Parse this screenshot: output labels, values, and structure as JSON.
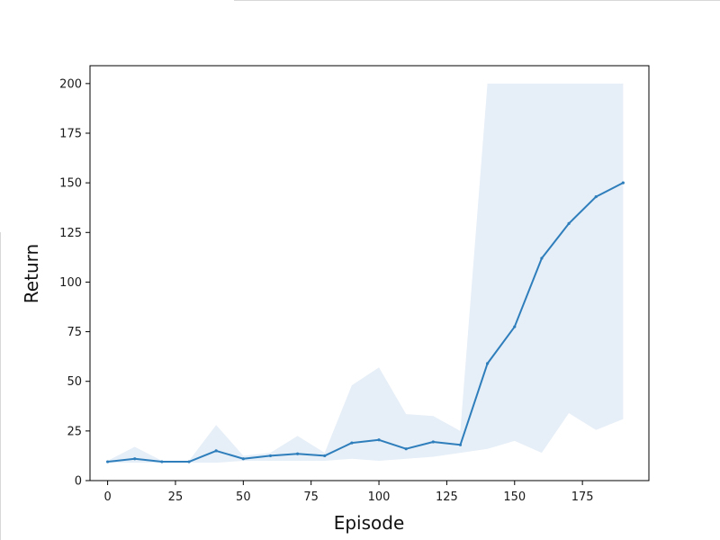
{
  "chart_data": {
    "type": "line",
    "title": "",
    "xlabel": "Episode",
    "ylabel": "Return",
    "xlim": [
      -6.5,
      199.5
    ],
    "ylim": [
      0,
      209
    ],
    "xticks": [
      0,
      25,
      50,
      75,
      100,
      125,
      150,
      175
    ],
    "yticks": [
      0,
      25,
      50,
      75,
      100,
      125,
      150,
      175,
      200
    ],
    "grid": false,
    "legend": "none",
    "series": [
      {
        "color": "#2e7ebc",
        "band_color": "#e6eef7",
        "x": [
          0,
          10,
          20,
          30,
          40,
          50,
          60,
          70,
          80,
          90,
          100,
          110,
          120,
          130,
          140,
          150,
          160,
          170,
          180,
          190
        ],
        "y": [
          9.5,
          11,
          9.5,
          9.5,
          15,
          11,
          12.5,
          13.5,
          12.5,
          19,
          20.5,
          16,
          19.5,
          18,
          59,
          77.5,
          112,
          129.5,
          143,
          150
        ],
        "lower": [
          9,
          9,
          9,
          9,
          9,
          10,
          10,
          10,
          10,
          11,
          10,
          11,
          12,
          14,
          16,
          20,
          14,
          34,
          25.5,
          31
        ],
        "upper": [
          10,
          17,
          10,
          10,
          28,
          12.5,
          14,
          22.5,
          14,
          48,
          57,
          33.5,
          32.5,
          25,
          200,
          200,
          200,
          200,
          200,
          200
        ]
      }
    ]
  }
}
